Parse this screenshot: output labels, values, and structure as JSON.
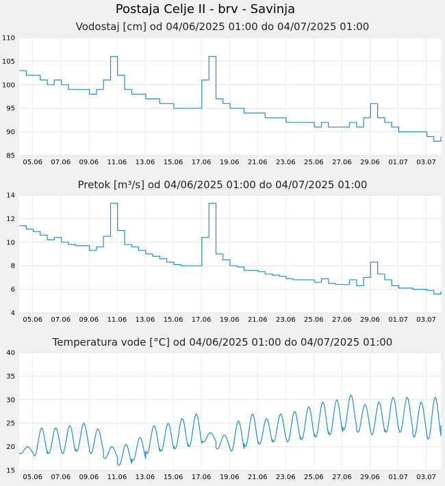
{
  "title": "Postaja Celje II - brv - Savinja",
  "chart_data": [
    {
      "type": "line",
      "title": "Vodostaj [cm] od 04/06/2025 01:00 do 04/07/2025 01:00",
      "xlabel": "",
      "ylabel": "",
      "ylim": [
        85,
        110
      ],
      "yticks": [
        85,
        90,
        95,
        100,
        105,
        110
      ],
      "xlim": [
        "04/06/2025 01:00",
        "04/07/2025 01:00"
      ],
      "xtick_labels": [
        "05.06",
        "07.06",
        "09.06",
        "11.06",
        "13.06",
        "15.06",
        "17.06",
        "19.06",
        "21.06",
        "23.06",
        "25.06",
        "27.06",
        "29.06",
        "01.07",
        "03.07"
      ],
      "grid": true,
      "color": "#1a8fd4",
      "series": [
        {
          "x_days": [
            0,
            0.5,
            1,
            1.5,
            2,
            2.5,
            3,
            3.5,
            4,
            4.5,
            5,
            5.5,
            6,
            6.5,
            7,
            7.5,
            8,
            8.5,
            9,
            9.5,
            10,
            10.5,
            11,
            11.5,
            12,
            12.5,
            13,
            13.5,
            14,
            14.5,
            15,
            15.5,
            16,
            16.5,
            17,
            17.5,
            18,
            18.5,
            19,
            19.5,
            20,
            20.5,
            21,
            21.5,
            22,
            22.5,
            23,
            23.5,
            24,
            24.5,
            25,
            25.5,
            26,
            26.5,
            27,
            27.5,
            28,
            28.5,
            29,
            29.5,
            30
          ],
          "values": [
            103,
            102,
            102,
            101,
            100,
            101,
            100,
            99,
            99,
            99,
            98,
            99,
            101,
            106,
            102,
            99,
            98,
            98,
            97,
            97,
            96,
            96,
            95,
            95,
            95,
            95,
            101,
            106,
            97,
            96,
            95,
            95,
            94,
            94,
            94,
            93,
            93,
            93,
            92,
            92,
            92,
            92,
            91,
            92,
            91,
            91,
            91,
            92,
            91,
            93,
            96,
            93,
            92,
            91,
            90,
            90,
            90,
            90,
            89,
            88,
            89
          ]
        }
      ]
    },
    {
      "type": "line",
      "title": "Pretok [m³/s] od 04/06/2025 01:00 do 04/07/2025 01:00",
      "xlabel": "",
      "ylabel": "",
      "ylim": [
        4,
        14
      ],
      "yticks": [
        4,
        6,
        8,
        10,
        12,
        14
      ],
      "xlim": [
        "04/06/2025 01:00",
        "04/07/2025 01:00"
      ],
      "xtick_labels": [
        "05.06",
        "07.06",
        "09.06",
        "11.06",
        "13.06",
        "15.06",
        "17.06",
        "19.06",
        "21.06",
        "23.06",
        "25.06",
        "27.06",
        "29.06",
        "01.07",
        "03.07"
      ],
      "grid": true,
      "color": "#1a8fd4",
      "series": [
        {
          "x_days": [
            0,
            0.5,
            1,
            1.5,
            2,
            2.5,
            3,
            3.5,
            4,
            4.5,
            5,
            5.5,
            6,
            6.5,
            7,
            7.5,
            8,
            8.5,
            9,
            9.5,
            10,
            10.5,
            11,
            11.5,
            12,
            12.5,
            13,
            13.5,
            14,
            14.5,
            15,
            15.5,
            16,
            16.5,
            17,
            17.5,
            18,
            18.5,
            19,
            19.5,
            20,
            20.5,
            21,
            21.5,
            22,
            22.5,
            23,
            23.5,
            24,
            24.5,
            25,
            25.5,
            26,
            26.5,
            27,
            27.5,
            28,
            28.5,
            29,
            29.5,
            30
          ],
          "values": [
            11.4,
            11.1,
            10.9,
            10.6,
            10.2,
            10.4,
            10.0,
            9.8,
            9.7,
            9.7,
            9.3,
            9.6,
            10.5,
            13.3,
            11.0,
            9.8,
            9.6,
            9.3,
            9.0,
            8.8,
            8.6,
            8.3,
            8.1,
            8.0,
            8.0,
            8.0,
            10.4,
            13.3,
            9.0,
            8.5,
            8.0,
            7.9,
            7.6,
            7.6,
            7.5,
            7.3,
            7.2,
            7.1,
            6.9,
            6.8,
            6.8,
            6.8,
            6.6,
            6.9,
            6.5,
            6.4,
            6.4,
            6.8,
            6.3,
            7.0,
            8.3,
            7.3,
            6.8,
            6.3,
            6.1,
            6.1,
            6.0,
            6.0,
            5.9,
            5.6,
            5.8
          ]
        }
      ]
    },
    {
      "type": "line",
      "title": "Temperatura vode [°C] od 04/06/2025 01:00 do 04/07/2025 01:00",
      "xlabel": "",
      "ylabel": "",
      "ylim": [
        15,
        40
      ],
      "yticks": [
        15,
        20,
        25,
        30,
        35,
        40
      ],
      "xlim": [
        "04/06/2025 01:00",
        "04/07/2025 01:00"
      ],
      "xtick_labels": [
        "05.06",
        "07.06",
        "09.06",
        "11.06",
        "13.06",
        "15.06",
        "17.06",
        "19.06",
        "21.06",
        "23.06",
        "25.06",
        "27.06",
        "29.06",
        "01.07",
        "03.07"
      ],
      "grid": true,
      "color": "#1a8fd4",
      "series": [
        {
          "day_min_max": [
            [
              18.5,
              20.0
            ],
            [
              18.0,
              24.0
            ],
            [
              18.5,
              24.0
            ],
            [
              18.5,
              24.5
            ],
            [
              19.0,
              25.0
            ],
            [
              18.5,
              23.8
            ],
            [
              17.5,
              20.0
            ],
            [
              16.0,
              20.5
            ],
            [
              17.0,
              22.0
            ],
            [
              18.5,
              24.5
            ],
            [
              19.0,
              25.0
            ],
            [
              19.5,
              26.0
            ],
            [
              20.0,
              27.0
            ],
            [
              21.0,
              23.0
            ],
            [
              19.5,
              22.5
            ],
            [
              19.0,
              25.5
            ],
            [
              20.0,
              27.0
            ],
            [
              20.5,
              26.0
            ],
            [
              21.0,
              27.0
            ],
            [
              21.0,
              27.5
            ],
            [
              21.5,
              28.5
            ],
            [
              22.0,
              29.5
            ],
            [
              22.5,
              30.0
            ],
            [
              23.5,
              31.0
            ],
            [
              23.0,
              29.0
            ],
            [
              22.5,
              29.5
            ],
            [
              23.0,
              30.5
            ],
            [
              23.0,
              30.5
            ],
            [
              22.0,
              29.5
            ],
            [
              21.5,
              30.5
            ],
            [
              24.5,
              25.0
            ]
          ]
        }
      ]
    }
  ]
}
